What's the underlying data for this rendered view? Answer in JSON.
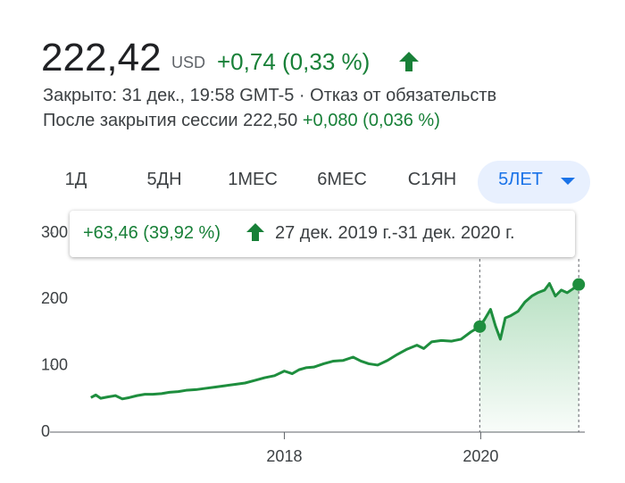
{
  "header": {
    "price": "222,42",
    "currency": "USD",
    "change": "+0,74 (0,33 %)",
    "status": "Закрыто: 31 дек., 19:58 GMT-5 · Отказ от обязательств",
    "after_hours_label": "После закрытия сессии 222,50",
    "after_hours_change": "+0,080 (0,036 %)"
  },
  "tabs": [
    "1Д",
    "5ДН",
    "1МЕС",
    "6МЕС",
    "С1ЯН",
    "5ЛЕТ"
  ],
  "tooltip": {
    "change": "+63,46 (39,92 %)",
    "period": "27 дек. 2019 г.-31 дек. 2020 г."
  },
  "chart_data": {
    "type": "line",
    "x": [
      2016.03,
      2016.08,
      2016.13,
      2016.2,
      2016.28,
      2016.35,
      2016.42,
      2016.5,
      2016.58,
      2016.66,
      2016.75,
      2016.83,
      2016.92,
      2017.0,
      2017.1,
      2017.2,
      2017.3,
      2017.4,
      2017.5,
      2017.6,
      2017.7,
      2017.8,
      2017.9,
      2018.0,
      2018.08,
      2018.15,
      2018.22,
      2018.3,
      2018.4,
      2018.5,
      2018.6,
      2018.7,
      2018.78,
      2018.86,
      2018.95,
      2019.05,
      2019.15,
      2019.25,
      2019.35,
      2019.42,
      2019.5,
      2019.6,
      2019.7,
      2019.8,
      2019.9,
      2019.99,
      2020.04,
      2020.1,
      2020.15,
      2020.2,
      2020.25,
      2020.3,
      2020.38,
      2020.45,
      2020.52,
      2020.58,
      2020.65,
      2020.7,
      2020.76,
      2020.82,
      2020.88,
      2020.94,
      2020.998
    ],
    "series": [
      {
        "color": "#1e8e3e",
        "values": [
          52,
          56,
          51,
          53,
          55,
          50,
          52,
          55,
          57,
          57,
          58,
          60,
          61,
          63,
          64,
          66,
          68,
          70,
          72,
          74,
          78,
          82,
          85,
          92,
          88,
          94,
          97,
          98,
          103,
          107,
          108,
          113,
          107,
          103,
          101,
          108,
          117,
          125,
          131,
          126,
          136,
          138,
          137,
          140,
          151,
          158.96,
          170,
          185,
          160,
          140,
          172,
          175,
          182,
          196,
          205,
          210,
          214,
          224,
          205,
          214,
          210,
          216,
          222.42
        ]
      }
    ],
    "xlim": [
      2015.65,
      2021.06
    ],
    "xticks": [
      2018,
      2020
    ],
    "ylim": [
      0,
      300
    ],
    "yticks": [
      0,
      100,
      200,
      300
    ],
    "highlight_xlim": [
      2019.99,
      2020.998
    ],
    "grid": false
  }
}
